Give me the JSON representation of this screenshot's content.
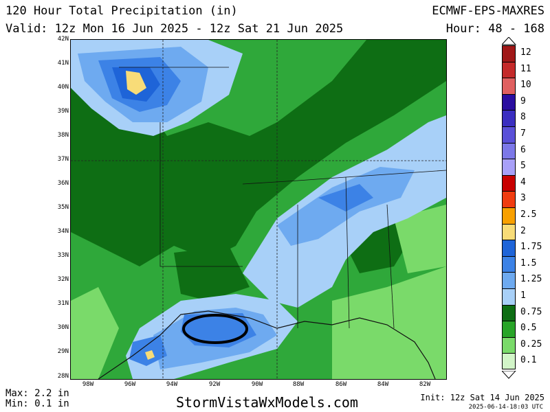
{
  "header": {
    "title": "120 Hour Total Precipitation (in)",
    "valid": "Valid: 12z Mon 16 Jun 2025 - 12z Sat 21 Jun 2025",
    "model": "ECMWF-EPS-MAXRES",
    "hour": "Hour: 48 - 168"
  },
  "map": {
    "lat_labels": [
      "42N",
      "41N",
      "40N",
      "39N",
      "38N",
      "37N",
      "36N",
      "35N",
      "34N",
      "33N",
      "32N",
      "31N",
      "30N",
      "29N",
      "28N"
    ],
    "lon_labels": [
      "98W",
      "96W",
      "94W",
      "92W",
      "90W",
      "88W",
      "86W",
      "84W",
      "82W"
    ]
  },
  "legend": {
    "levels": [
      {
        "label": "12",
        "color": "#a01818"
      },
      {
        "label": "11",
        "color": "#c42a2a"
      },
      {
        "label": "10",
        "color": "#e06060"
      },
      {
        "label": "9",
        "color": "#2a0ea0"
      },
      {
        "label": "8",
        "color": "#3a2ec0"
      },
      {
        "label": "7",
        "color": "#5a50d8"
      },
      {
        "label": "6",
        "color": "#7c78e8"
      },
      {
        "label": "5",
        "color": "#a8a0f8"
      },
      {
        "label": "4",
        "color": "#c80000"
      },
      {
        "label": "3",
        "color": "#f03c10"
      },
      {
        "label": "2.5",
        "color": "#f8a000"
      },
      {
        "label": "2",
        "color": "#f8dc78"
      },
      {
        "label": "1.75",
        "color": "#1e64d8"
      },
      {
        "label": "1.5",
        "color": "#3c82e6"
      },
      {
        "label": "1.25",
        "color": "#6eaaf0"
      },
      {
        "label": "1",
        "color": "#a8d0f8"
      },
      {
        "label": "0.75",
        "color": "#0e6e14"
      },
      {
        "label": "0.5",
        "color": "#28a428"
      },
      {
        "label": "0.25",
        "color": "#7ada6a"
      },
      {
        "label": "0.1",
        "color": "#d2f5c8"
      }
    ]
  },
  "footer": {
    "max": "Max: 2.2 in",
    "min": "Min: 0.1 in",
    "site": "StormVistaWxModels.com",
    "init": "Init: 12z Sat 14 Jun 2025",
    "stamp": "2025-06-14-18:03 UTC"
  }
}
